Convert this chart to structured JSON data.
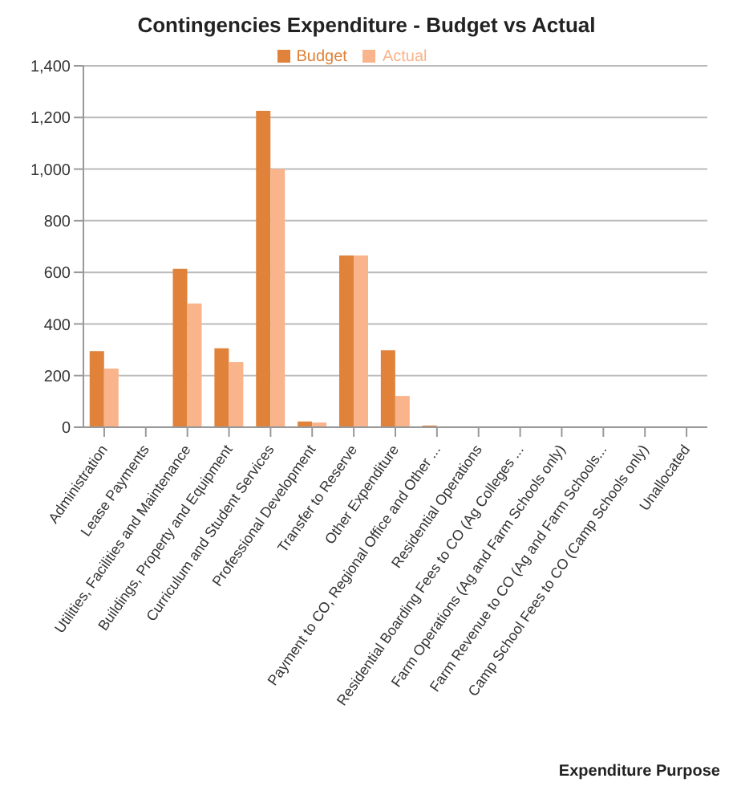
{
  "chart_data": {
    "type": "bar",
    "title": "Contingencies Expenditure - Budget vs Actual",
    "xlabel": "Expenditure Purpose",
    "categories": [
      "Administration",
      "Lease Payments",
      "Utilities, Facilities and Maintenance",
      "Buildings, Property and Equipment",
      "Curriculum and Student Services",
      "Professional Development",
      "Transfer to Reserve",
      "Other Expenditure",
      "Payment to CO, Regional Office and Other ...",
      "Residential Operations",
      "Residential Boarding Fees to CO (Ag Colleges ...",
      "Farm Operations (Ag and Farm Schools only)",
      "Farm Revenue to CO (Ag and Farm Schools...",
      "Camp School Fees to CO (Camp Schools only)",
      "Unallocated"
    ],
    "series": [
      {
        "name": "Budget",
        "color": "#e0823a",
        "values": [
          295,
          0,
          614,
          306,
          1226,
          22,
          665,
          298,
          6,
          0,
          0,
          0,
          0,
          0,
          0
        ]
      },
      {
        "name": "Actual",
        "color": "#f9b48c",
        "values": [
          227,
          0,
          479,
          252,
          1000,
          18,
          665,
          121,
          0,
          0,
          0,
          0,
          0,
          0,
          0
        ]
      }
    ],
    "ylim": [
      0,
      1400
    ],
    "yticks": [
      {
        "value": 0,
        "label": "0"
      },
      {
        "value": 200,
        "label": "200"
      },
      {
        "value": 400,
        "label": "400"
      },
      {
        "value": 600,
        "label": "600"
      },
      {
        "value": 800,
        "label": "800"
      },
      {
        "value": 1000,
        "label": "1,000"
      },
      {
        "value": 1200,
        "label": "1,200"
      },
      {
        "value": 1400,
        "label": "1,400"
      }
    ],
    "grid": "y",
    "legend": "top"
  }
}
